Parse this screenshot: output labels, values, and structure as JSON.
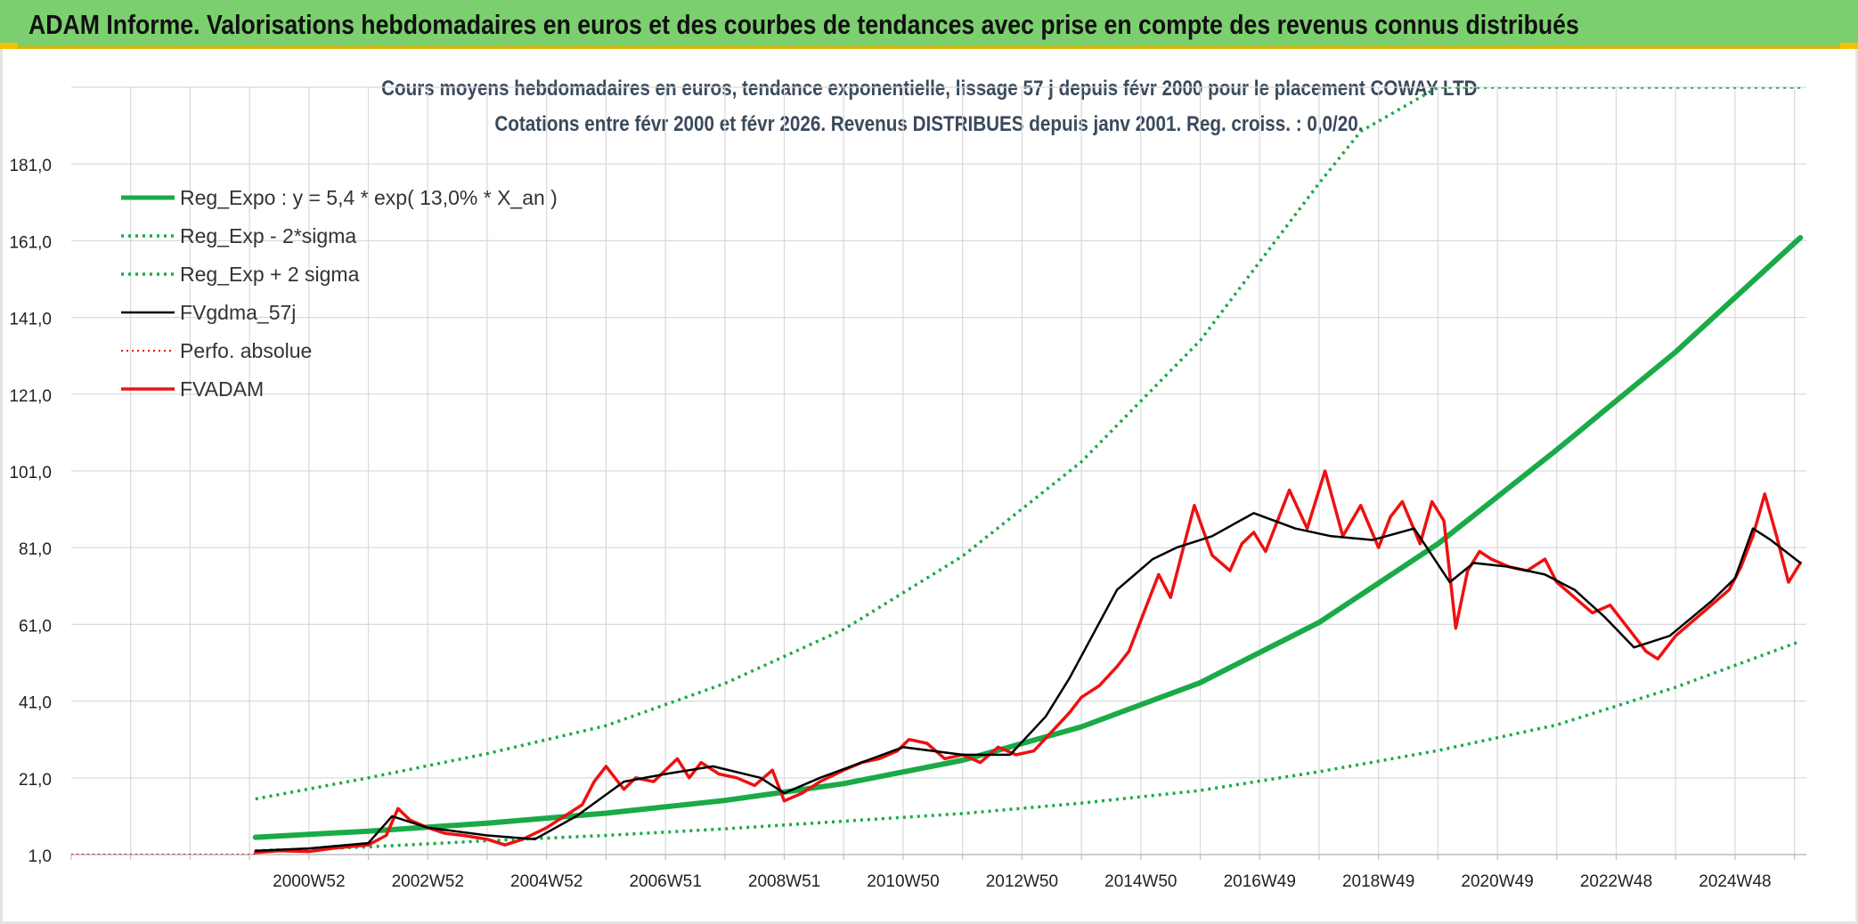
{
  "header": {
    "title": "ADAM Informe. Valorisations hebdomadaires en euros et des courbes de tendances avec prise en compte des revenus connus distribués"
  },
  "chart_data": {
    "type": "line",
    "title": "Cours moyens hebdomadaires en euros, tendance exponentielle, lissage 57 j depuis févr 2000 pour le placement COWAY LTD",
    "subtitle": "Cotations entre févr 2000 et févr 2026. Revenus DISTRIBUES depuis janv 2001. Reg. croiss. : 0,0/20.",
    "xlabel": "",
    "ylabel": "",
    "x_range": [
      1997.0,
      2026.2
    ],
    "ylim": [
      1.0,
      201.0
    ],
    "y_ticks": [
      "1,0",
      "21,0",
      "41,0",
      "61,0",
      "81,0",
      "101,0",
      "121,0",
      "141,0",
      "161,0",
      "181,0"
    ],
    "y_tick_values": [
      1,
      21,
      41,
      61,
      81,
      101,
      121,
      141,
      161,
      181
    ],
    "x_ticks": [
      "2000W52",
      "2002W52",
      "2004W52",
      "2006W51",
      "2008W51",
      "2010W50",
      "2012W50",
      "2014W50",
      "2016W49",
      "2018W49",
      "2020W49",
      "2022W48",
      "2024W48"
    ],
    "x_tick_values": [
      2001.0,
      2003.0,
      2005.0,
      2007.0,
      2009.0,
      2011.0,
      2013.0,
      2015.0,
      2017.0,
      2019.0,
      2021.0,
      2023.0,
      2025.0
    ],
    "grid": true,
    "legend_position": "top-left",
    "colors": {
      "trend": "#1aaa47",
      "smooth": "#000000",
      "perf": "#e01010",
      "adam": "#ee1111",
      "grid": "#d9d9d9"
    },
    "series": [
      {
        "name": "Reg_Expo : y = 5,4 * exp( 13,0% *  X_an )",
        "style": "thick-green",
        "x": [
          2000.1,
          2002,
          2004,
          2006,
          2008,
          2010,
          2012,
          2014,
          2016,
          2018,
          2020,
          2022,
          2024,
          2026.1
        ],
        "values": [
          5.5,
          7.1,
          9.2,
          11.8,
          15.1,
          19.5,
          25.6,
          34.3,
          45.8,
          61.5,
          82.0,
          106.5,
          132.0,
          161.8
        ]
      },
      {
        "name": "Reg_Exp - 2*sigma",
        "style": "dotted-green",
        "x": [
          2000.1,
          2002,
          2004,
          2006,
          2008,
          2010,
          2012,
          2014,
          2016,
          2018,
          2020,
          2022,
          2024,
          2026.1
        ],
        "values": [
          2.0,
          3.0,
          4.6,
          6.0,
          7.7,
          9.7,
          11.7,
          14.4,
          17.7,
          22.6,
          28.1,
          34.8,
          44.6,
          56.6
        ]
      },
      {
        "name": "Reg_Exp + 2 sigma",
        "style": "dotted-green",
        "x": [
          2000.1,
          2002,
          2004,
          2006,
          2008,
          2010,
          2012,
          2014,
          2016,
          2018,
          2018.7,
          2020,
          2022,
          2024,
          2026.1
        ],
        "values": [
          15.5,
          21.0,
          27.3,
          34.6,
          45.6,
          59.7,
          78.8,
          103.4,
          135.0,
          176.0,
          189.5,
          201.0,
          201.0,
          201.0,
          201.0
        ]
      },
      {
        "name": "FVgdma_57j",
        "style": "black",
        "x": [
          2000.1,
          2001,
          2002,
          2002.4,
          2003,
          2004,
          2004.8,
          2005.5,
          2006.3,
          2007,
          2007.8,
          2008.6,
          2009,
          2009.6,
          2010.3,
          2011,
          2012,
          2012.8,
          2013.4,
          2013.8,
          2014.6,
          2015.2,
          2015.6,
          2016.2,
          2016.9,
          2017.6,
          2018.2,
          2018.9,
          2019.6,
          2020.2,
          2020.6,
          2021.2,
          2021.8,
          2022.3,
          2022.8,
          2023.3,
          2023.9,
          2024.6,
          2025.0,
          2025.3,
          2025.6,
          2026.1
        ],
        "values": [
          2.0,
          2.6,
          4.0,
          11.0,
          8.0,
          6.0,
          5.0,
          11.0,
          20.0,
          22.0,
          24.0,
          21.0,
          17.0,
          21.0,
          25.0,
          29.0,
          27.0,
          27.0,
          37.0,
          47.0,
          70.0,
          78.0,
          81.0,
          84.0,
          90.0,
          86.0,
          84.0,
          83.0,
          86.0,
          72.0,
          77.0,
          76.0,
          74.0,
          70.0,
          63.0,
          55.0,
          58.0,
          67.0,
          73.0,
          86.0,
          83.0,
          77.0
        ]
      },
      {
        "name": "Perfo. absolue",
        "style": "dotted-red",
        "x": [
          1997.0,
          2000.1
        ],
        "values": [
          1.0,
          1.0
        ]
      },
      {
        "name": "FVADAM",
        "style": "thick-red",
        "x": [
          2000.1,
          2000.5,
          2001,
          2001.5,
          2002,
          2002.3,
          2002.5,
          2002.7,
          2003,
          2003.3,
          2003.6,
          2004,
          2004.3,
          2004.6,
          2005,
          2005.3,
          2005.6,
          2005.8,
          2006.0,
          2006.3,
          2006.5,
          2006.8,
          2007.0,
          2007.2,
          2007.4,
          2007.6,
          2007.9,
          2008.2,
          2008.5,
          2008.8,
          2009.0,
          2009.3,
          2009.6,
          2010.0,
          2010.3,
          2010.6,
          2010.9,
          2011.1,
          2011.4,
          2011.7,
          2012.0,
          2012.3,
          2012.6,
          2012.9,
          2013.2,
          2013.5,
          2013.8,
          2014.0,
          2014.3,
          2014.6,
          2014.8,
          2015.1,
          2015.3,
          2015.5,
          2015.7,
          2015.9,
          2016.2,
          2016.5,
          2016.7,
          2016.9,
          2017.1,
          2017.3,
          2017.5,
          2017.8,
          2018.1,
          2018.4,
          2018.7,
          2019.0,
          2019.2,
          2019.4,
          2019.7,
          2019.9,
          2020.1,
          2020.3,
          2020.5,
          2020.7,
          2020.9,
          2021.2,
          2021.5,
          2021.8,
          2022.0,
          2022.3,
          2022.6,
          2022.9,
          2023.2,
          2023.5,
          2023.7,
          2024.0,
          2024.3,
          2024.6,
          2024.9,
          2025.1,
          2025.3,
          2025.5,
          2025.7,
          2025.9,
          2026.1
        ],
        "values": [
          1.5,
          2.0,
          1.8,
          2.8,
          3.5,
          6.0,
          13.0,
          10.0,
          8.0,
          6.5,
          6.0,
          5.0,
          3.5,
          5.0,
          8.0,
          11.0,
          14.0,
          20.0,
          24.0,
          18.0,
          21.0,
          20.0,
          23.0,
          26.0,
          21.0,
          25.0,
          22.0,
          21.0,
          19.0,
          23.0,
          15.0,
          17.0,
          20.0,
          23.0,
          25.0,
          26.0,
          28.0,
          31.0,
          30.0,
          26.0,
          27.0,
          25.0,
          29.0,
          27.0,
          28.0,
          33.0,
          38.0,
          42.0,
          45.0,
          50.0,
          54.0,
          66.0,
          74.0,
          68.0,
          80.0,
          92.0,
          79.0,
          75.0,
          82.0,
          85.0,
          80.0,
          88.0,
          96.0,
          86.0,
          101.0,
          84.0,
          92.0,
          81.0,
          89.0,
          93.0,
          82.0,
          93.0,
          88.0,
          60.0,
          75.0,
          80.0,
          78.0,
          76.0,
          75.0,
          78.0,
          72.0,
          68.0,
          64.0,
          66.0,
          60.0,
          54.0,
          52.0,
          58.0,
          62.0,
          66.0,
          70.0,
          76.0,
          84.0,
          95.0,
          84.0,
          72.0,
          77.0
        ]
      }
    ]
  }
}
